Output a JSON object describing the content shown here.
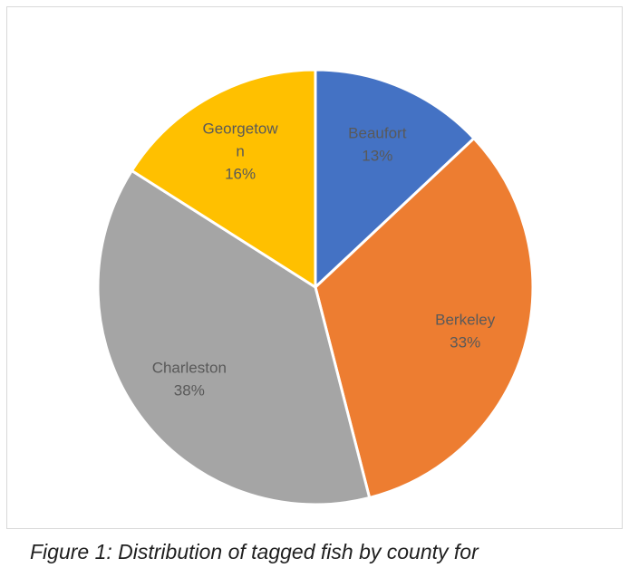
{
  "chart_data": {
    "type": "pie",
    "categories": [
      "Beaufort",
      "Berkeley",
      "Charleston",
      "Georgetown"
    ],
    "values": [
      13,
      33,
      38,
      16
    ],
    "percent_labels": [
      "13%",
      "33%",
      "38%",
      "16%"
    ],
    "label_lines": [
      [
        "Beaufort"
      ],
      [
        "Berkeley"
      ],
      [
        "Charleston"
      ],
      [
        "Georgetow",
        "n"
      ]
    ],
    "colors": [
      "#4472c4",
      "#ed7d31",
      "#a5a5a5",
      "#ffc000"
    ],
    "start_angle_deg": 0,
    "direction": "clockwise",
    "legend": "none",
    "title": ""
  },
  "caption": {
    "text": "Figure 1: Distribution of tagged fish by county for"
  }
}
